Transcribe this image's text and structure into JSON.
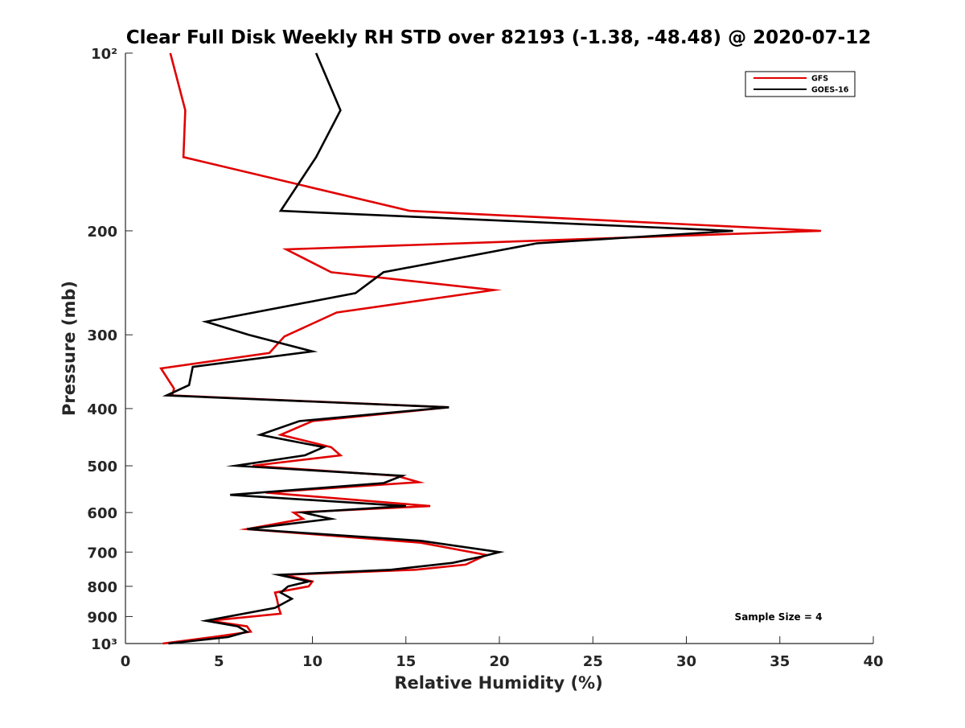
{
  "chart_data": {
    "type": "line",
    "title": "Clear Full Disk Weekly RH STD over 82193 (-1.38, -48.48) @ 2020-07-12",
    "xlabel": "Relative Humidity (%)",
    "ylabel": "Pressure (mb)",
    "xlim": [
      0,
      40
    ],
    "ylim": [
      100,
      1000
    ],
    "y_scale": "log",
    "y_reversed": true,
    "x_ticks": [
      0,
      5,
      10,
      15,
      20,
      25,
      30,
      35,
      40
    ],
    "x_tick_labels": [
      "0",
      "5",
      "10",
      "15",
      "20",
      "25",
      "30",
      "35",
      "40"
    ],
    "y_ticks": [
      100,
      200,
      300,
      400,
      500,
      600,
      700,
      800,
      900,
      1000
    ],
    "y_tick_labels": [
      "10²",
      "200",
      "300",
      "400",
      "500",
      "600",
      "700",
      "800",
      "900",
      "10³"
    ],
    "grid": false,
    "legend_position": "top-right",
    "annotations": [
      "Sample Size = 4"
    ],
    "series": [
      {
        "name": "GFS",
        "color": "#e00000",
        "points": [
          [
            2.4,
            100
          ],
          [
            3.2,
            125
          ],
          [
            3.1,
            150
          ],
          [
            15.2,
            185
          ],
          [
            37.2,
            200
          ],
          [
            8.6,
            215
          ],
          [
            11.0,
            235
          ],
          [
            19.7,
            252
          ],
          [
            11.3,
            275
          ],
          [
            8.5,
            302
          ],
          [
            7.7,
            322
          ],
          [
            1.9,
            342
          ],
          [
            2.6,
            370
          ],
          [
            2.5,
            380
          ],
          [
            17.3,
            398
          ],
          [
            10.0,
            420
          ],
          [
            8.3,
            443
          ],
          [
            11.0,
            465
          ],
          [
            11.5,
            480
          ],
          [
            6.8,
            500
          ],
          [
            14.5,
            520
          ],
          [
            15.7,
            533
          ],
          [
            7.5,
            555
          ],
          [
            16.3,
            585
          ],
          [
            9.0,
            600
          ],
          [
            9.5,
            615
          ],
          [
            6.5,
            640
          ],
          [
            15.8,
            675
          ],
          [
            19.3,
            708
          ],
          [
            18.2,
            735
          ],
          [
            15.5,
            750
          ],
          [
            8.5,
            765
          ],
          [
            10.0,
            785
          ],
          [
            9.8,
            800
          ],
          [
            8.0,
            820
          ],
          [
            8.1,
            840
          ],
          [
            8.2,
            870
          ],
          [
            8.3,
            890
          ],
          [
            4.5,
            915
          ],
          [
            6.5,
            935
          ],
          [
            6.7,
            955
          ],
          [
            4.7,
            975
          ],
          [
            2.0,
            1000
          ]
        ]
      },
      {
        "name": "GOES-16",
        "color": "#000000",
        "points": [
          [
            10.2,
            100
          ],
          [
            11.5,
            125
          ],
          [
            10.2,
            150
          ],
          [
            8.3,
            185
          ],
          [
            32.5,
            200
          ],
          [
            22.0,
            210
          ],
          [
            13.8,
            235
          ],
          [
            12.3,
            255
          ],
          [
            4.3,
            285
          ],
          [
            6.6,
            300
          ],
          [
            10.0,
            320
          ],
          [
            3.6,
            340
          ],
          [
            3.4,
            365
          ],
          [
            2.2,
            380
          ],
          [
            17.3,
            398
          ],
          [
            9.3,
            420
          ],
          [
            7.2,
            443
          ],
          [
            10.6,
            465
          ],
          [
            9.6,
            480
          ],
          [
            5.9,
            500
          ],
          [
            14.8,
            520
          ],
          [
            13.8,
            535
          ],
          [
            5.6,
            560
          ],
          [
            15.0,
            585
          ],
          [
            9.5,
            600
          ],
          [
            11.0,
            615
          ],
          [
            6.5,
            640
          ],
          [
            15.8,
            670
          ],
          [
            20.0,
            700
          ],
          [
            19.0,
            713
          ],
          [
            17.5,
            730
          ],
          [
            14.2,
            750
          ],
          [
            8.2,
            765
          ],
          [
            9.8,
            785
          ],
          [
            8.7,
            800
          ],
          [
            8.3,
            820
          ],
          [
            8.9,
            840
          ],
          [
            8.0,
            870
          ],
          [
            4.3,
            915
          ],
          [
            6.0,
            935
          ],
          [
            6.5,
            955
          ],
          [
            5.5,
            975
          ],
          [
            2.3,
            1000
          ]
        ]
      }
    ]
  }
}
